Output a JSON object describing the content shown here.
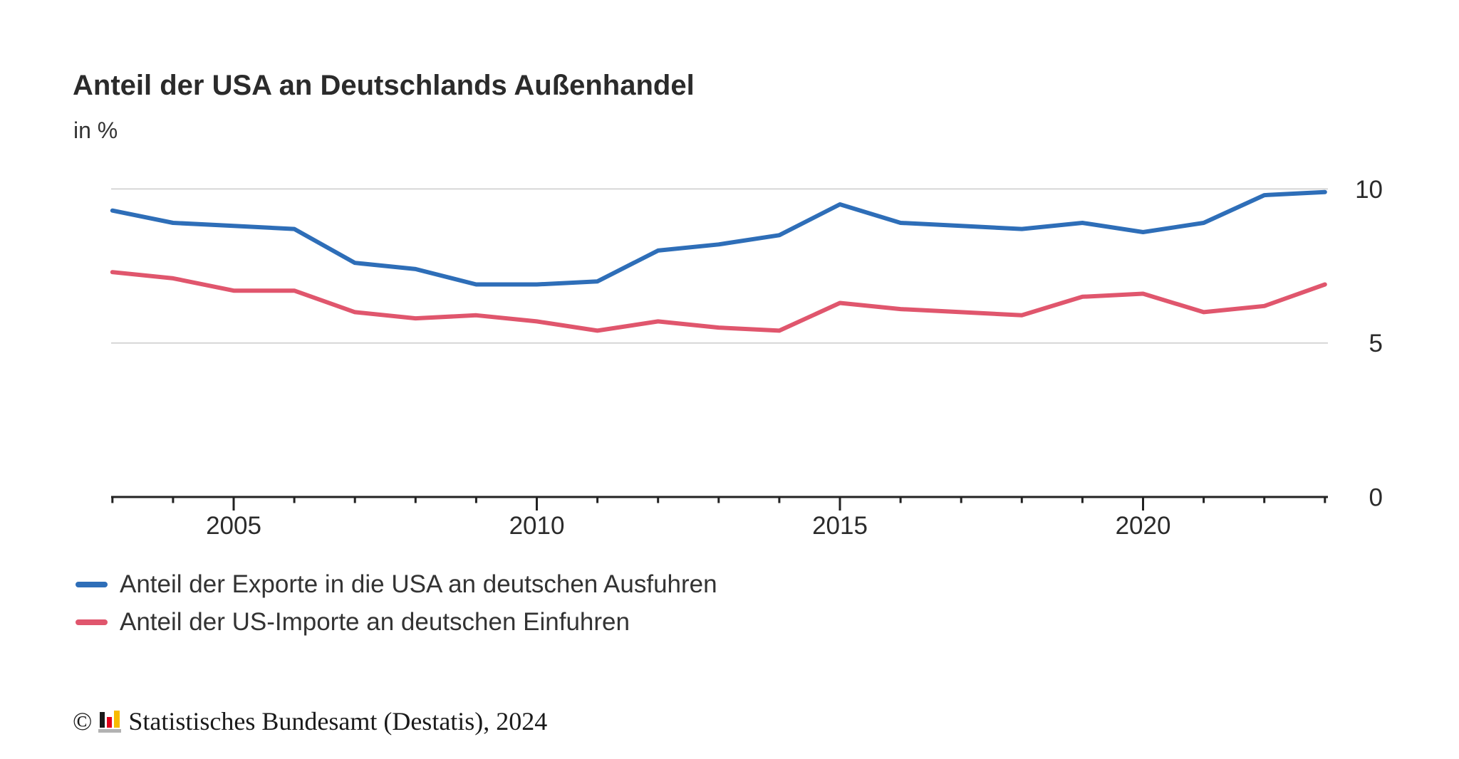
{
  "chart_data": {
    "type": "line",
    "title": "Anteil der USA an Deutschlands Außenhandel",
    "subtitle": "in %",
    "x": [
      2003,
      2004,
      2005,
      2006,
      2007,
      2008,
      2009,
      2010,
      2011,
      2012,
      2013,
      2014,
      2015,
      2016,
      2017,
      2018,
      2019,
      2020,
      2021,
      2022,
      2023
    ],
    "x_tick_labels": [
      "2005",
      "2010",
      "2015",
      "2020"
    ],
    "x_labeled_years": [
      2005,
      2010,
      2015,
      2020
    ],
    "ylim": [
      0,
      10
    ],
    "y_tick_labels": [
      "0",
      "5",
      "10"
    ],
    "y_tick_values": [
      0,
      5,
      10
    ],
    "gridline_values": [
      5,
      10
    ],
    "legend_position": "bottom-left",
    "series": [
      {
        "name": "Anteil der Exporte in die USA an deutschen Ausfuhren",
        "key": "exports",
        "color": "#2e6eb8",
        "values": [
          9.3,
          8.9,
          8.8,
          8.7,
          7.6,
          7.4,
          6.9,
          6.9,
          7.0,
          8.0,
          8.2,
          8.5,
          9.5,
          8.9,
          8.8,
          8.7,
          8.9,
          8.6,
          8.9,
          9.8,
          9.9
        ]
      },
      {
        "name": "Anteil der US-Importe an deutschen Einfuhren",
        "key": "imports",
        "color": "#e0566d",
        "values": [
          7.3,
          7.1,
          6.7,
          6.7,
          6.0,
          5.8,
          5.9,
          5.7,
          5.4,
          5.7,
          5.5,
          5.4,
          6.3,
          6.1,
          6.0,
          5.9,
          6.5,
          6.6,
          6.0,
          6.2,
          6.9
        ]
      }
    ]
  },
  "footer": {
    "copyright_symbol": "©",
    "source_text": "Statistisches Bundesamt (Destatis), 2024"
  },
  "colors": {
    "export_line": "#2e6eb8",
    "import_line": "#e0566d",
    "gridline": "#cbcbcb",
    "axis": "#222222",
    "text": "#2b2b2b",
    "logo_black": "#1a1a1a",
    "logo_red": "#e2001a",
    "logo_gold": "#f8bb00",
    "logo_gray": "#b2b2b2"
  }
}
